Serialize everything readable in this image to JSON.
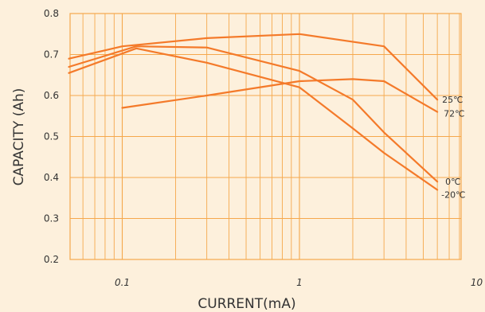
{
  "chart_data": {
    "type": "line",
    "xlabel": "CURRENT(mA)",
    "ylabel": "CAPACITY (Ah)",
    "x_scale": "log",
    "xlim": [
      0.05,
      10
    ],
    "ylim": [
      0.2,
      0.8
    ],
    "x_ticks": [
      {
        "value": 0.1,
        "label": "0.1"
      },
      {
        "value": 1,
        "label": "1"
      },
      {
        "value": 10,
        "label": "10"
      }
    ],
    "y_ticks": [
      {
        "value": 0.2,
        "label": "0.2"
      },
      {
        "value": 0.3,
        "label": "0.3"
      },
      {
        "value": 0.4,
        "label": "0.4"
      },
      {
        "value": 0.5,
        "label": "0.5"
      },
      {
        "value": 0.6,
        "label": "0.6"
      },
      {
        "value": 0.7,
        "label": "0.7"
      },
      {
        "value": 0.8,
        "label": "0.8"
      }
    ],
    "grid": true,
    "line_color": "#f47a2a",
    "grid_color": "#f5a84c",
    "series": [
      {
        "name": "25℃",
        "x": [
          0.05,
          0.1,
          0.3,
          1,
          3,
          6
        ],
        "y": [
          0.69,
          0.72,
          0.74,
          0.75,
          0.72,
          0.59
        ]
      },
      {
        "name": "72℃",
        "x": [
          0.1,
          0.3,
          1,
          2,
          3,
          6
        ],
        "y": [
          0.57,
          0.6,
          0.635,
          0.64,
          0.635,
          0.56
        ]
      },
      {
        "name": "0℃",
        "x": [
          0.05,
          0.12,
          0.3,
          1,
          2,
          3,
          6
        ],
        "y": [
          0.67,
          0.72,
          0.717,
          0.66,
          0.59,
          0.51,
          0.39
        ]
      },
      {
        "name": "-20℃",
        "x": [
          0.05,
          0.12,
          0.3,
          1,
          2,
          3,
          6
        ],
        "y": [
          0.655,
          0.715,
          0.68,
          0.62,
          0.52,
          0.46,
          0.37
        ]
      }
    ]
  }
}
